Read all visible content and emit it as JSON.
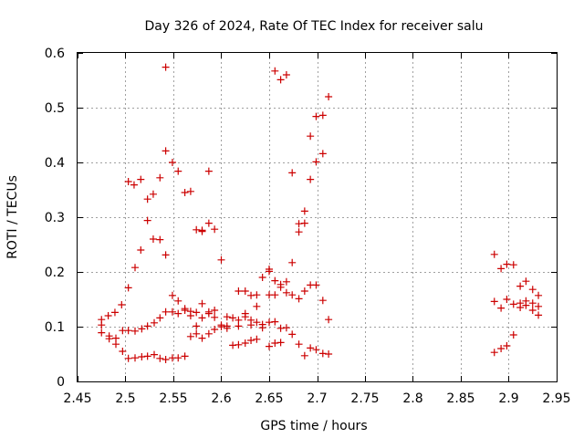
{
  "chart_data": {
    "type": "scatter",
    "title": "Day 326 of 2024, Rate Of TEC Index for receiver salu",
    "xlabel": "GPS time / hours",
    "ylabel": "ROTI / TECUs",
    "xlim": [
      2.45,
      2.95
    ],
    "ylim": [
      0,
      0.6
    ],
    "xticks": [
      2.45,
      2.5,
      2.55,
      2.6,
      2.65,
      2.7,
      2.75,
      2.8,
      2.85,
      2.9,
      2.95
    ],
    "xtick_labels": [
      "2.45",
      "2.5",
      "2.55",
      "2.6",
      "2.65",
      "2.7",
      "2.75",
      "2.8",
      "2.85",
      "2.9",
      "2.95"
    ],
    "yticks": [
      0,
      0.1,
      0.2,
      0.3,
      0.4,
      0.5,
      0.6
    ],
    "ytick_labels": [
      "0",
      "0.1",
      "0.2",
      "0.3",
      "0.4",
      "0.5",
      "0.6"
    ],
    "grid": true,
    "marker": "+",
    "marker_color": "#cc0000",
    "series": [
      {
        "points": [
          [
            2.475,
            0.113
          ],
          [
            2.475,
            0.103
          ],
          [
            2.475,
            0.089
          ],
          [
            2.482,
            0.12
          ],
          [
            2.483,
            0.083
          ],
          [
            2.483,
            0.078
          ],
          [
            2.489,
            0.126
          ],
          [
            2.49,
            0.079
          ],
          [
            2.49,
            0.068
          ],
          [
            2.496,
            0.14
          ],
          [
            2.497,
            0.093
          ],
          [
            2.497,
            0.055
          ],
          [
            2.503,
            0.171
          ],
          [
            2.503,
            0.365
          ],
          [
            2.503,
            0.093
          ],
          [
            2.503,
            0.042
          ],
          [
            2.509,
            0.359
          ],
          [
            2.51,
            0.208
          ],
          [
            2.51,
            0.092
          ],
          [
            2.51,
            0.043
          ],
          [
            2.516,
            0.369
          ],
          [
            2.516,
            0.24
          ],
          [
            2.517,
            0.096
          ],
          [
            2.517,
            0.045
          ],
          [
            2.523,
            0.333
          ],
          [
            2.523,
            0.294
          ],
          [
            2.523,
            0.101
          ],
          [
            2.523,
            0.046
          ],
          [
            2.529,
            0.342
          ],
          [
            2.529,
            0.26
          ],
          [
            2.53,
            0.107
          ],
          [
            2.53,
            0.049
          ],
          [
            2.536,
            0.372
          ],
          [
            2.536,
            0.259
          ],
          [
            2.536,
            0.116
          ],
          [
            2.536,
            0.042
          ],
          [
            2.542,
            0.574
          ],
          [
            2.542,
            0.421
          ],
          [
            2.542,
            0.231
          ],
          [
            2.542,
            0.127
          ],
          [
            2.542,
            0.04
          ],
          [
            2.549,
            0.4
          ],
          [
            2.549,
            0.157
          ],
          [
            2.549,
            0.127
          ],
          [
            2.549,
            0.043
          ],
          [
            2.555,
            0.384
          ],
          [
            2.555,
            0.147
          ],
          [
            2.555,
            0.124
          ],
          [
            2.555,
            0.043
          ],
          [
            2.562,
            0.345
          ],
          [
            2.562,
            0.133
          ],
          [
            2.562,
            0.13
          ],
          [
            2.562,
            0.046
          ],
          [
            2.568,
            0.347
          ],
          [
            2.568,
            0.128
          ],
          [
            2.568,
            0.12
          ],
          [
            2.568,
            0.082
          ],
          [
            2.574,
            0.277
          ],
          [
            2.574,
            0.126
          ],
          [
            2.574,
            0.101
          ],
          [
            2.574,
            0.087
          ],
          [
            2.58,
            0.274
          ],
          [
            2.58,
            0.276
          ],
          [
            2.58,
            0.142
          ],
          [
            2.58,
            0.116
          ],
          [
            2.58,
            0.079
          ],
          [
            2.587,
            0.384
          ],
          [
            2.587,
            0.289
          ],
          [
            2.587,
            0.127
          ],
          [
            2.587,
            0.124
          ],
          [
            2.587,
            0.087
          ],
          [
            2.593,
            0.278
          ],
          [
            2.593,
            0.13
          ],
          [
            2.593,
            0.117
          ],
          [
            2.593,
            0.095
          ],
          [
            2.6,
            0.222
          ],
          [
            2.6,
            0.103
          ],
          [
            2.6,
            0.1
          ],
          [
            2.606,
            0.118
          ],
          [
            2.606,
            0.101
          ],
          [
            2.606,
            0.097
          ],
          [
            2.612,
            0.116
          ],
          [
            2.612,
            0.066
          ],
          [
            2.618,
            0.165
          ],
          [
            2.618,
            0.112
          ],
          [
            2.618,
            0.101
          ],
          [
            2.618,
            0.067
          ],
          [
            2.625,
            0.165
          ],
          [
            2.625,
            0.124
          ],
          [
            2.625,
            0.118
          ],
          [
            2.625,
            0.07
          ],
          [
            2.631,
            0.157
          ],
          [
            2.631,
            0.112
          ],
          [
            2.631,
            0.103
          ],
          [
            2.631,
            0.075
          ],
          [
            2.637,
            0.158
          ],
          [
            2.637,
            0.137
          ],
          [
            2.637,
            0.108
          ],
          [
            2.637,
            0.077
          ],
          [
            2.643,
            0.19
          ],
          [
            2.643,
            0.104
          ],
          [
            2.643,
            0.098
          ],
          [
            2.65,
            0.205
          ],
          [
            2.65,
            0.201
          ],
          [
            2.65,
            0.158
          ],
          [
            2.65,
            0.108
          ],
          [
            2.65,
            0.064
          ],
          [
            2.656,
            0.567
          ],
          [
            2.656,
            0.184
          ],
          [
            2.656,
            0.158
          ],
          [
            2.656,
            0.109
          ],
          [
            2.656,
            0.07
          ],
          [
            2.662,
            0.551
          ],
          [
            2.662,
            0.177
          ],
          [
            2.662,
            0.172
          ],
          [
            2.662,
            0.097
          ],
          [
            2.662,
            0.071
          ],
          [
            2.668,
            0.56
          ],
          [
            2.668,
            0.182
          ],
          [
            2.668,
            0.162
          ],
          [
            2.668,
            0.098
          ],
          [
            2.674,
            0.381
          ],
          [
            2.674,
            0.217
          ],
          [
            2.674,
            0.158
          ],
          [
            2.674,
            0.086
          ],
          [
            2.681,
            0.288
          ],
          [
            2.681,
            0.273
          ],
          [
            2.681,
            0.151
          ],
          [
            2.681,
            0.068
          ],
          [
            2.687,
            0.311
          ],
          [
            2.687,
            0.289
          ],
          [
            2.687,
            0.165
          ],
          [
            2.687,
            0.047
          ],
          [
            2.693,
            0.448
          ],
          [
            2.693,
            0.369
          ],
          [
            2.693,
            0.176
          ],
          [
            2.693,
            0.061
          ],
          [
            2.699,
            0.484
          ],
          [
            2.699,
            0.401
          ],
          [
            2.699,
            0.176
          ],
          [
            2.699,
            0.058
          ],
          [
            2.706,
            0.486
          ],
          [
            2.706,
            0.416
          ],
          [
            2.706,
            0.148
          ],
          [
            2.706,
            0.051
          ],
          [
            2.712,
            0.52
          ],
          [
            2.712,
            0.113
          ],
          [
            2.712,
            0.05
          ],
          [
            2.885,
            0.232
          ],
          [
            2.885,
            0.146
          ],
          [
            2.885,
            0.053
          ],
          [
            2.892,
            0.206
          ],
          [
            2.892,
            0.134
          ],
          [
            2.892,
            0.06
          ],
          [
            2.898,
            0.214
          ],
          [
            2.898,
            0.15
          ],
          [
            2.898,
            0.065
          ],
          [
            2.905,
            0.213
          ],
          [
            2.905,
            0.141
          ],
          [
            2.905,
            0.085
          ],
          [
            2.912,
            0.174
          ],
          [
            2.912,
            0.143
          ],
          [
            2.912,
            0.135
          ],
          [
            2.918,
            0.183
          ],
          [
            2.918,
            0.147
          ],
          [
            2.918,
            0.139
          ],
          [
            2.925,
            0.168
          ],
          [
            2.925,
            0.143
          ],
          [
            2.925,
            0.13
          ],
          [
            2.931,
            0.157
          ],
          [
            2.931,
            0.137
          ],
          [
            2.931,
            0.121
          ]
        ]
      }
    ]
  }
}
